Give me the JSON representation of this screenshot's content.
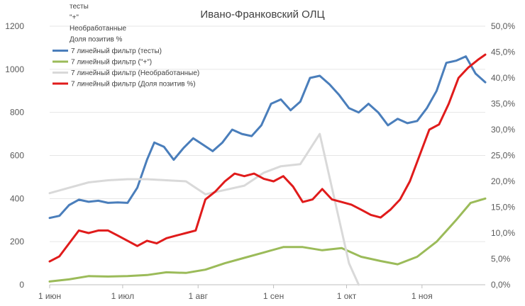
{
  "chart_data": {
    "type": "line",
    "title": "Ивано-Франковский ОЛЦ",
    "x_axis": {
      "type": "date",
      "range": [
        "2020-06-01",
        "2020-11-27"
      ],
      "tick_labels": [
        "1 июн",
        "1 июл",
        "1 авг",
        "1 сен",
        "1 окт",
        "1 ноя"
      ],
      "tick_dates": [
        "2020-06-01",
        "2020-07-01",
        "2020-08-01",
        "2020-09-01",
        "2020-10-01",
        "2020-11-01"
      ]
    },
    "y_axis_left": {
      "range": [
        0,
        1200
      ],
      "step": 200,
      "tick_labels": [
        "0",
        "200",
        "400",
        "600",
        "800",
        "1000",
        "1200"
      ]
    },
    "y_axis_right": {
      "range": [
        0,
        50
      ],
      "unit": "%",
      "step": 5,
      "tick_labels": [
        "0,0%",
        "5,0%",
        "10,0%",
        "15,0%",
        "20,0%",
        "25,0%",
        "30,0%",
        "35,0%",
        "40,0%",
        "45,0%",
        "50,0%"
      ]
    },
    "grid": {
      "horizontal": true,
      "vertical": false
    },
    "legend": {
      "placement": "top-left",
      "plain_entries": [
        "тесты",
        "\"+\"",
        "Необработанные",
        "Доля позитив %"
      ],
      "line_entries": [
        {
          "label": "7 линейный фильтр (тесты)",
          "color": "#4a7ebb"
        },
        {
          "label": "7 линейный фильтр (\"+\")",
          "color": "#9bbb59"
        },
        {
          "label": "7 линейный фильтр (Необработанные)",
          "color": "#d9d9d9"
        },
        {
          "label": "7 линейный фильтр (Доля позитив %)",
          "color": "#e01b1b"
        }
      ]
    },
    "series": [
      {
        "name": "7 линейный фильтр (тесты)",
        "axis": "left",
        "color": "#4a7ebb",
        "points": [
          [
            "2020-06-01",
            310
          ],
          [
            "2020-06-05",
            320
          ],
          [
            "2020-06-09",
            370
          ],
          [
            "2020-06-13",
            395
          ],
          [
            "2020-06-17",
            385
          ],
          [
            "2020-06-21",
            390
          ],
          [
            "2020-06-25",
            380
          ],
          [
            "2020-06-29",
            382
          ],
          [
            "2020-07-03",
            380
          ],
          [
            "2020-07-07",
            450
          ],
          [
            "2020-07-11",
            580
          ],
          [
            "2020-07-14",
            660
          ],
          [
            "2020-07-18",
            640
          ],
          [
            "2020-07-22",
            580
          ],
          [
            "2020-07-26",
            635
          ],
          [
            "2020-07-30",
            680
          ],
          [
            "2020-08-03",
            650
          ],
          [
            "2020-08-07",
            620
          ],
          [
            "2020-08-11",
            660
          ],
          [
            "2020-08-15",
            720
          ],
          [
            "2020-08-19",
            700
          ],
          [
            "2020-08-23",
            690
          ],
          [
            "2020-08-27",
            740
          ],
          [
            "2020-08-31",
            840
          ],
          [
            "2020-09-04",
            860
          ],
          [
            "2020-09-08",
            810
          ],
          [
            "2020-09-12",
            850
          ],
          [
            "2020-09-16",
            960
          ],
          [
            "2020-09-20",
            970
          ],
          [
            "2020-09-24",
            930
          ],
          [
            "2020-09-28",
            880
          ],
          [
            "2020-10-02",
            820
          ],
          [
            "2020-10-06",
            800
          ],
          [
            "2020-10-10",
            840
          ],
          [
            "2020-10-14",
            800
          ],
          [
            "2020-10-18",
            740
          ],
          [
            "2020-10-22",
            770
          ],
          [
            "2020-10-26",
            750
          ],
          [
            "2020-10-30",
            760
          ],
          [
            "2020-11-03",
            820
          ],
          [
            "2020-11-07",
            900
          ],
          [
            "2020-11-11",
            1030
          ],
          [
            "2020-11-15",
            1040
          ],
          [
            "2020-11-19",
            1060
          ],
          [
            "2020-11-23",
            980
          ],
          [
            "2020-11-27",
            940
          ]
        ]
      },
      {
        "name": "7 линейный фильтр (\"+\")",
        "axis": "left",
        "color": "#9bbb59",
        "points": [
          [
            "2020-06-01",
            15
          ],
          [
            "2020-06-09",
            25
          ],
          [
            "2020-06-17",
            40
          ],
          [
            "2020-06-25",
            38
          ],
          [
            "2020-07-03",
            40
          ],
          [
            "2020-07-11",
            45
          ],
          [
            "2020-07-19",
            58
          ],
          [
            "2020-07-27",
            55
          ],
          [
            "2020-08-04",
            70
          ],
          [
            "2020-08-12",
            100
          ],
          [
            "2020-08-20",
            125
          ],
          [
            "2020-08-28",
            150
          ],
          [
            "2020-09-05",
            175
          ],
          [
            "2020-09-13",
            175
          ],
          [
            "2020-09-21",
            160
          ],
          [
            "2020-09-29",
            170
          ],
          [
            "2020-10-07",
            130
          ],
          [
            "2020-10-15",
            110
          ],
          [
            "2020-10-22",
            95
          ],
          [
            "2020-10-30",
            130
          ],
          [
            "2020-11-07",
            200
          ],
          [
            "2020-11-15",
            300
          ],
          [
            "2020-11-21",
            380
          ],
          [
            "2020-11-27",
            400
          ]
        ]
      },
      {
        "name": "7 линейный фильтр (Необработанные)",
        "axis": "left",
        "color": "#d9d9d9",
        "points": [
          [
            "2020-06-01",
            425
          ],
          [
            "2020-06-09",
            450
          ],
          [
            "2020-06-17",
            475
          ],
          [
            "2020-06-25",
            485
          ],
          [
            "2020-07-03",
            490
          ],
          [
            "2020-07-11",
            490
          ],
          [
            "2020-07-19",
            485
          ],
          [
            "2020-07-27",
            480
          ],
          [
            "2020-08-04",
            420
          ],
          [
            "2020-08-12",
            440
          ],
          [
            "2020-08-20",
            460
          ],
          [
            "2020-08-28",
            520
          ],
          [
            "2020-09-04",
            550
          ],
          [
            "2020-09-12",
            560
          ],
          [
            "2020-09-20",
            700
          ],
          [
            "2020-09-26",
            400
          ],
          [
            "2020-10-02",
            100
          ],
          [
            "2020-10-06",
            0
          ]
        ]
      },
      {
        "name": "7 линейный фильтр (Доля позитив %)",
        "axis": "right",
        "color": "#e01b1b",
        "points": [
          [
            "2020-06-01",
            4.5
          ],
          [
            "2020-06-05",
            5.5
          ],
          [
            "2020-06-09",
            8.0
          ],
          [
            "2020-06-13",
            10.5
          ],
          [
            "2020-06-17",
            10.0
          ],
          [
            "2020-06-21",
            10.5
          ],
          [
            "2020-06-25",
            10.5
          ],
          [
            "2020-06-29",
            9.5
          ],
          [
            "2020-07-03",
            8.5
          ],
          [
            "2020-07-07",
            7.5
          ],
          [
            "2020-07-11",
            8.5
          ],
          [
            "2020-07-15",
            8.0
          ],
          [
            "2020-07-19",
            9.0
          ],
          [
            "2020-07-23",
            9.5
          ],
          [
            "2020-07-27",
            10.0
          ],
          [
            "2020-07-31",
            10.5
          ],
          [
            "2020-08-04",
            16.5
          ],
          [
            "2020-08-08",
            18.0
          ],
          [
            "2020-08-12",
            20.0
          ],
          [
            "2020-08-16",
            21.5
          ],
          [
            "2020-08-20",
            21.0
          ],
          [
            "2020-08-24",
            21.5
          ],
          [
            "2020-08-28",
            20.5
          ],
          [
            "2020-09-01",
            20.0
          ],
          [
            "2020-09-05",
            21.0
          ],
          [
            "2020-09-09",
            19.0
          ],
          [
            "2020-09-13",
            16.0
          ],
          [
            "2020-09-17",
            16.5
          ],
          [
            "2020-09-21",
            18.5
          ],
          [
            "2020-09-25",
            16.5
          ],
          [
            "2020-09-29",
            16.0
          ],
          [
            "2020-10-03",
            15.5
          ],
          [
            "2020-10-07",
            14.5
          ],
          [
            "2020-10-11",
            13.5
          ],
          [
            "2020-10-15",
            13.0
          ],
          [
            "2020-10-19",
            14.5
          ],
          [
            "2020-10-23",
            16.5
          ],
          [
            "2020-10-27",
            20.0
          ],
          [
            "2020-10-31",
            25.0
          ],
          [
            "2020-11-04",
            30.0
          ],
          [
            "2020-11-08",
            31.0
          ],
          [
            "2020-11-12",
            35.0
          ],
          [
            "2020-11-16",
            40.0
          ],
          [
            "2020-11-20",
            42.0
          ],
          [
            "2020-11-24",
            43.5
          ],
          [
            "2020-11-27",
            44.5
          ]
        ]
      }
    ]
  }
}
